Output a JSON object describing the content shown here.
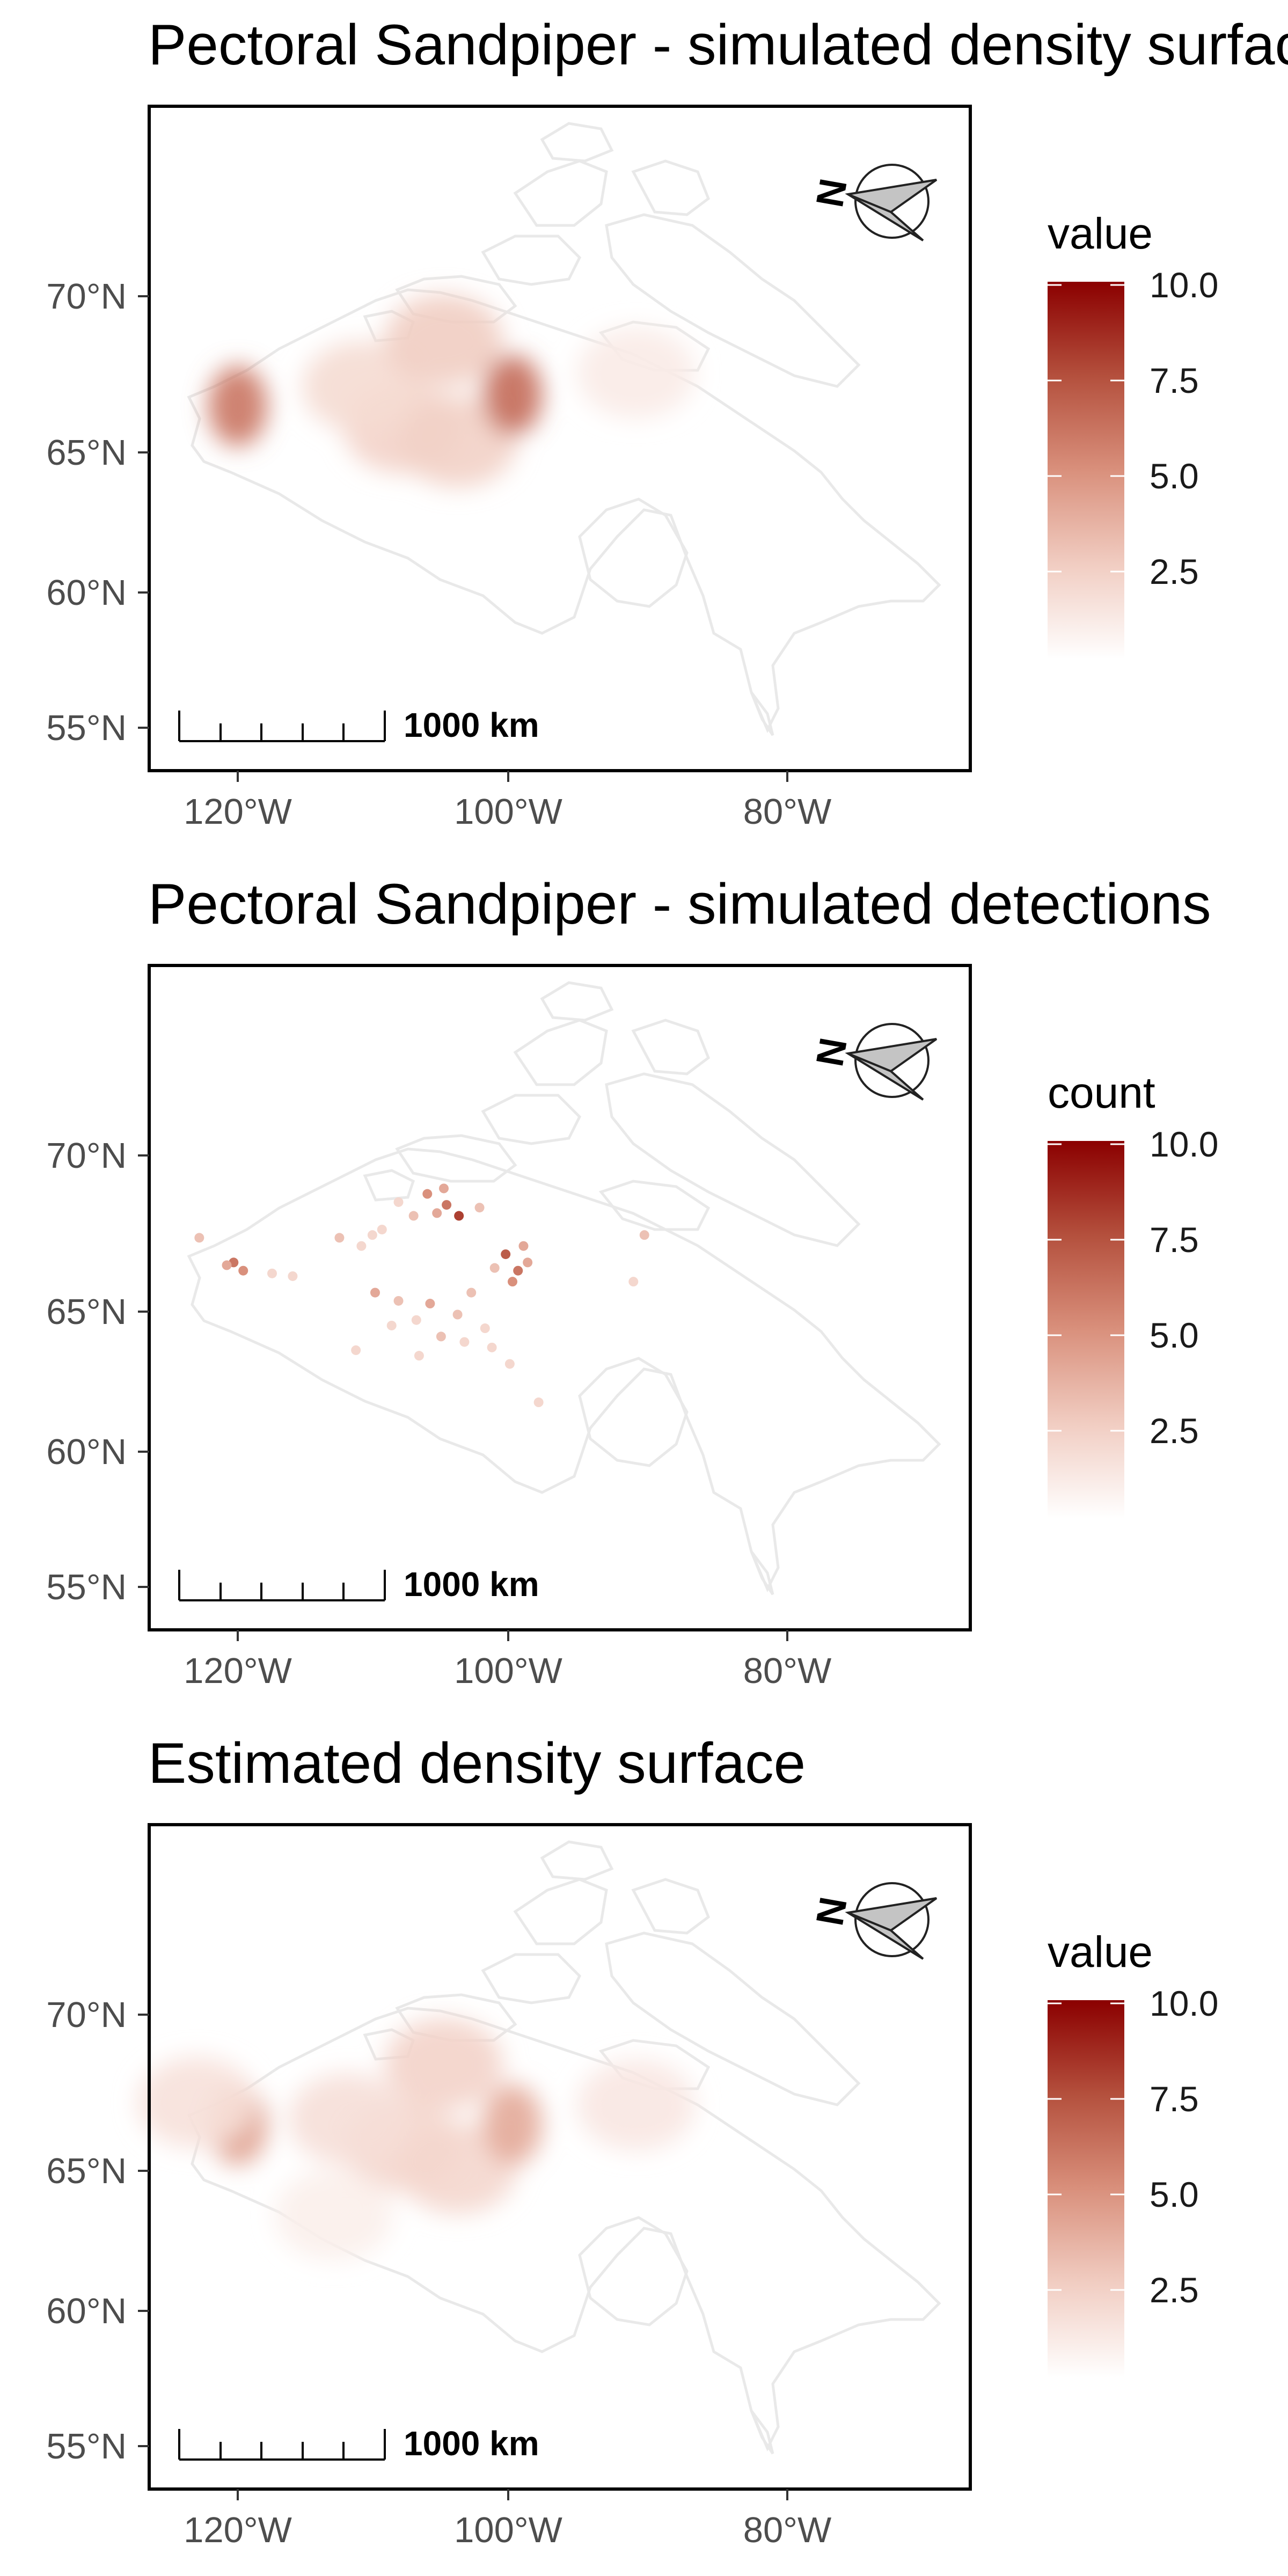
{
  "colors": {
    "low": "#ffffff",
    "high": "#8b0000",
    "land_outline": "#ebebeb",
    "panel_border": "#000000",
    "axis_text": "#4d4d4d"
  },
  "lat_ticks": [
    "55°N",
    "60°N",
    "65°N",
    "70°N"
  ],
  "lon_ticks": [
    "120°W",
    "100°W",
    "80°W"
  ],
  "legend_ticks": [
    "2.5",
    "5.0",
    "7.5",
    "10.0"
  ],
  "legend_range": [
    0,
    10
  ],
  "scale_bar_label": "1000 km",
  "north_arrow_label": "N",
  "panels": [
    {
      "title": "Pectoral Sandpiper - simulated density surface",
      "legend_title": "value",
      "type": "density",
      "hotspots": [
        {
          "lon": -108,
          "lat": 66.0,
          "value": 2.2
        },
        {
          "lon": -104,
          "lat": 65.5,
          "value": 2.3
        },
        {
          "lon": -111,
          "lat": 67.5,
          "value": 1.8
        },
        {
          "lon": -105,
          "lat": 69.2,
          "value": 2.5
        },
        {
          "lon": -100,
          "lat": 67.2,
          "value": 6.5
        },
        {
          "lon": -120.0,
          "lat": 66.8,
          "value": 6.0
        },
        {
          "lon": -91,
          "lat": 68.0,
          "value": 1.0
        }
      ]
    },
    {
      "title": "Pectoral Sandpiper - simulated detections",
      "legend_title": "count",
      "type": "detections",
      "points": [
        {
          "lon": -120.3,
          "lat": 66.9,
          "value": 6
        },
        {
          "lon": -119.6,
          "lat": 66.6,
          "value": 5
        },
        {
          "lon": -120.8,
          "lat": 66.8,
          "value": 4
        },
        {
          "lon": -117.5,
          "lat": 66.5,
          "value": 2
        },
        {
          "lon": -122.8,
          "lat": 67.8,
          "value": 3
        },
        {
          "lon": -116.0,
          "lat": 66.4,
          "value": 2
        },
        {
          "lon": -106.2,
          "lat": 69.4,
          "value": 5
        },
        {
          "lon": -104.8,
          "lat": 69.0,
          "value": 6
        },
        {
          "lon": -105.5,
          "lat": 68.7,
          "value": 4
        },
        {
          "lon": -103.9,
          "lat": 68.6,
          "value": 8
        },
        {
          "lon": -107.2,
          "lat": 68.6,
          "value": 3
        },
        {
          "lon": -105.0,
          "lat": 69.6,
          "value": 4
        },
        {
          "lon": -102.4,
          "lat": 68.9,
          "value": 3
        },
        {
          "lon": -108.3,
          "lat": 69.1,
          "value": 2
        },
        {
          "lon": -112.6,
          "lat": 67.8,
          "value": 3
        },
        {
          "lon": -111.0,
          "lat": 67.5,
          "value": 2
        },
        {
          "lon": -110.2,
          "lat": 67.9,
          "value": 2
        },
        {
          "lon": -109.5,
          "lat": 68.1,
          "value": 2
        },
        {
          "lon": -100.5,
          "lat": 67.2,
          "value": 7
        },
        {
          "lon": -99.6,
          "lat": 66.6,
          "value": 6
        },
        {
          "lon": -100.0,
          "lat": 66.2,
          "value": 5
        },
        {
          "lon": -98.9,
          "lat": 66.9,
          "value": 4
        },
        {
          "lon": -101.3,
          "lat": 66.7,
          "value": 3
        },
        {
          "lon": -99.2,
          "lat": 67.5,
          "value": 4
        },
        {
          "lon": -110.0,
          "lat": 65.8,
          "value": 4
        },
        {
          "lon": -108.3,
          "lat": 65.5,
          "value": 3
        },
        {
          "lon": -106.0,
          "lat": 65.4,
          "value": 4
        },
        {
          "lon": -104.0,
          "lat": 65.0,
          "value": 3
        },
        {
          "lon": -107.0,
          "lat": 64.8,
          "value": 2
        },
        {
          "lon": -102.0,
          "lat": 64.5,
          "value": 2
        },
        {
          "lon": -103.5,
          "lat": 64.0,
          "value": 2
        },
        {
          "lon": -105.2,
          "lat": 64.2,
          "value": 3
        },
        {
          "lon": -101.5,
          "lat": 63.8,
          "value": 2
        },
        {
          "lon": -108.8,
          "lat": 64.6,
          "value": 2
        },
        {
          "lon": -111.4,
          "lat": 63.7,
          "value": 2
        },
        {
          "lon": -106.8,
          "lat": 63.5,
          "value": 2
        },
        {
          "lon": -103.0,
          "lat": 65.8,
          "value": 3
        },
        {
          "lon": -100.2,
          "lat": 63.2,
          "value": 2
        },
        {
          "lon": -90.4,
          "lat": 67.9,
          "value": 3
        },
        {
          "lon": -91.2,
          "lat": 66.2,
          "value": 2
        },
        {
          "lon": -98.1,
          "lat": 61.8,
          "value": 2
        }
      ]
    },
    {
      "title": "Estimated density surface",
      "legend_title": "value",
      "type": "density",
      "hotspots": [
        {
          "lon": -108,
          "lat": 66.0,
          "value": 2.0
        },
        {
          "lon": -104,
          "lat": 65.2,
          "value": 2.0
        },
        {
          "lon": -112,
          "lat": 67.0,
          "value": 1.6
        },
        {
          "lon": -105,
          "lat": 69.0,
          "value": 2.2
        },
        {
          "lon": -100,
          "lat": 66.8,
          "value": 4.0
        },
        {
          "lon": -120.0,
          "lat": 66.8,
          "value": 4.5
        },
        {
          "lon": -123,
          "lat": 67.6,
          "value": 1.5
        },
        {
          "lon": -91,
          "lat": 67.5,
          "value": 1.2
        },
        {
          "lon": -113,
          "lat": 63.5,
          "value": 0.8
        }
      ]
    }
  ]
}
